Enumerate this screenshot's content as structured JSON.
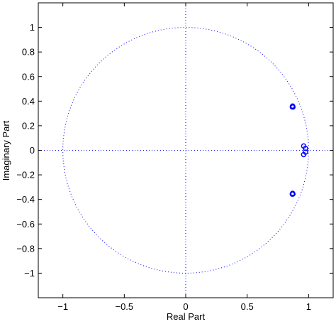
{
  "chart_data": {
    "type": "scatter",
    "title": "",
    "xlabel": "Real Part",
    "ylabel": "Imaginary Part",
    "xlim": [
      -1.2,
      1.2
    ],
    "ylim": [
      -1.2,
      1.2
    ],
    "xticks": [
      -1,
      -0.5,
      0,
      0.5,
      1
    ],
    "xtick_labels": [
      "−1",
      "−0.5",
      "0",
      "0.5",
      "1"
    ],
    "yticks": [
      1,
      0.8,
      0.6,
      0.4,
      0.2,
      0,
      -0.2,
      -0.4,
      -0.6,
      -0.8,
      -1
    ],
    "ytick_labels": [
      "1",
      "0.8",
      "0.6",
      "0.4",
      "0.2",
      "0",
      "−0.2",
      "−0.4",
      "−0.6",
      "−0.8",
      "−1"
    ],
    "unit_circle": true,
    "reference_axes": true,
    "marker": "circle (zeros)",
    "marker_color": "#0000ff",
    "points": [
      {
        "x": 0.87,
        "y": 0.36
      },
      {
        "x": 0.867,
        "y": 0.353
      },
      {
        "x": 0.873,
        "y": 0.352
      },
      {
        "x": 0.96,
        "y": 0.035
      },
      {
        "x": 0.975,
        "y": 0.015
      },
      {
        "x": 0.975,
        "y": -0.015
      },
      {
        "x": 0.96,
        "y": -0.035
      },
      {
        "x": 0.87,
        "y": -0.35
      },
      {
        "x": 0.867,
        "y": -0.357
      },
      {
        "x": 0.873,
        "y": -0.356
      }
    ]
  },
  "colors": {
    "axes": "#000000",
    "reference": "#0000ff",
    "markers": "#0000ff"
  }
}
